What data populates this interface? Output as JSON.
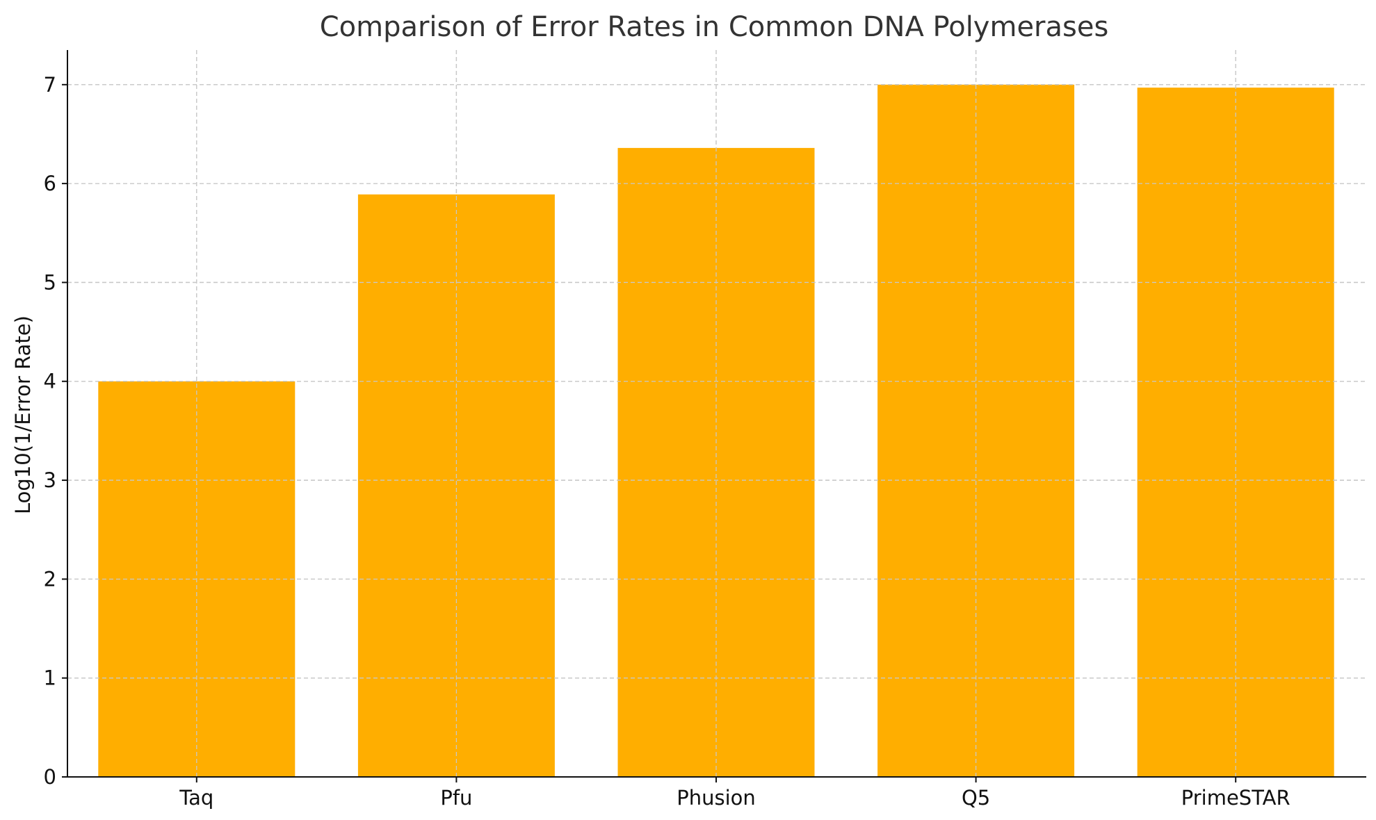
{
  "chart_data": {
    "type": "bar",
    "title": "Comparison of Error Rates in Common DNA Polymerases",
    "xlabel": "",
    "ylabel": "Log10(1/Error Rate)",
    "categories": [
      "Taq",
      "Pfu",
      "Phusion",
      "Q5",
      "PrimeSTAR"
    ],
    "values": [
      4.0,
      5.89,
      6.36,
      7.0,
      6.97
    ],
    "ylim": [
      0,
      7.35
    ],
    "yticks": [
      0,
      1,
      2,
      3,
      4,
      5,
      6,
      7
    ],
    "grid": true,
    "bar_color": "#FFAE00"
  }
}
